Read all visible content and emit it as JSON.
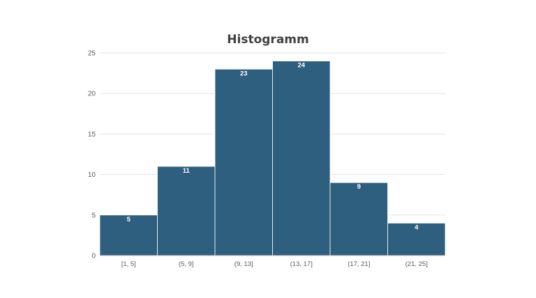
{
  "chart_data": {
    "type": "bar",
    "title": "Histogramm",
    "xlabel": "",
    "ylabel": "",
    "categories": [
      "[1, 5]",
      "(5, 9]",
      "(9, 13]",
      "(13, 17]",
      "(17, 21]",
      "(21, 25]"
    ],
    "values": [
      5,
      11,
      23,
      24,
      9,
      4
    ],
    "ylim": [
      0,
      25
    ],
    "yticks": [
      0,
      5,
      10,
      15,
      20,
      25
    ],
    "grid": true,
    "legend": "none",
    "bar_color": "#2e5f7f",
    "bar_edge_color": "#ffffff"
  }
}
